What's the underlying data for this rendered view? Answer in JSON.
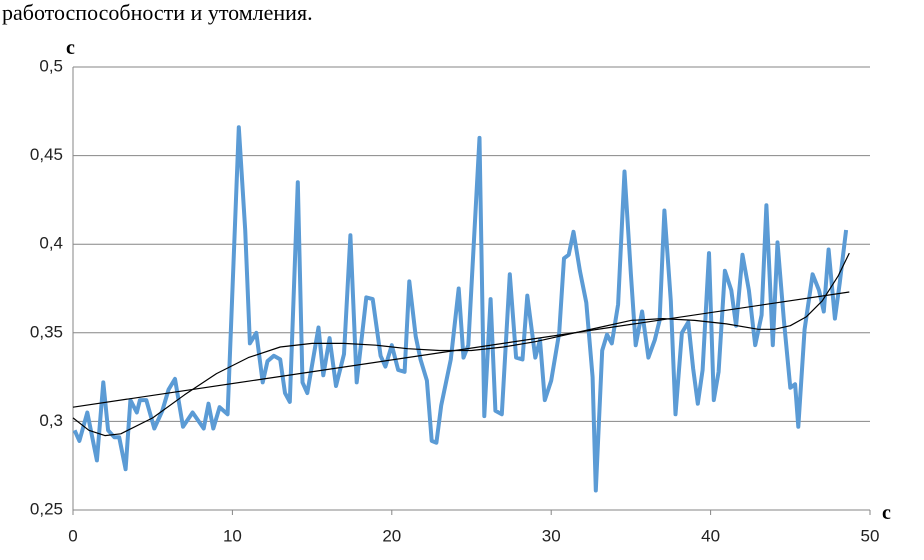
{
  "header_text": "работоспособности и утомления.",
  "chart_data": {
    "type": "line",
    "y_label": "с",
    "x_label": "с",
    "xlim": [
      0,
      50
    ],
    "xticks": [
      0,
      10,
      20,
      30,
      40,
      50
    ],
    "ylim": [
      0.25,
      0.5
    ],
    "yticks": [
      {
        "value": 0.25,
        "label": "0,25"
      },
      {
        "value": 0.3,
        "label": "0,3"
      },
      {
        "value": 0.35,
        "label": "0,35"
      },
      {
        "value": 0.4,
        "label": "0,4"
      },
      {
        "value": 0.45,
        "label": "0,45"
      },
      {
        "value": 0.5,
        "label": "0,5"
      }
    ],
    "grid": true,
    "series": [
      {
        "color": "#5b9bd5",
        "width": 4,
        "x": [
          0.1,
          0.4,
          0.9,
          1.5,
          1.9,
          2.2,
          2.6,
          2.9,
          3.3,
          3.6,
          4.0,
          4.2,
          4.6,
          5.1,
          5.6,
          6.0,
          6.4,
          6.9,
          7.5,
          8.2,
          8.5,
          8.8,
          9.2,
          9.7,
          10.4,
          10.8,
          11.1,
          11.5,
          11.9,
          12.2,
          12.6,
          13.0,
          13.3,
          13.6,
          14.1,
          14.4,
          14.7,
          15.4,
          15.7,
          16.1,
          16.5,
          17.0,
          17.4,
          17.8,
          18.4,
          18.8,
          19.3,
          19.6,
          20.0,
          20.4,
          20.8,
          21.1,
          21.5,
          21.8,
          22.2,
          22.5,
          22.8,
          23.1,
          23.7,
          24.2,
          24.5,
          24.8,
          25.5,
          25.8,
          26.2,
          26.5,
          26.9,
          27.4,
          27.8,
          28.2,
          28.5,
          29.0,
          29.3,
          29.6,
          30.0,
          30.5,
          30.8,
          31.1,
          31.4,
          31.8,
          32.2,
          32.6,
          32.8,
          33.2,
          33.5,
          33.8,
          34.2,
          34.6,
          35.0,
          35.3,
          35.7,
          36.1,
          36.5,
          36.8,
          37.1,
          37.5,
          37.8,
          38.2,
          38.6,
          38.9,
          39.2,
          39.5,
          39.9,
          40.2,
          40.5,
          40.9,
          41.3,
          41.6,
          42.0,
          42.4,
          42.8,
          43.2,
          43.5,
          43.9,
          44.2,
          44.6,
          45.0,
          45.3,
          45.5,
          45.9,
          46.4,
          46.8,
          47.1,
          47.4,
          47.8,
          48.1,
          48.5
        ],
        "values": [
          0.295,
          0.289,
          0.305,
          0.278,
          0.322,
          0.295,
          0.291,
          0.291,
          0.273,
          0.312,
          0.305,
          0.312,
          0.312,
          0.296,
          0.306,
          0.318,
          0.324,
          0.297,
          0.305,
          0.296,
          0.31,
          0.296,
          0.308,
          0.304,
          0.466,
          0.408,
          0.344,
          0.35,
          0.322,
          0.334,
          0.337,
          0.335,
          0.316,
          0.311,
          0.435,
          0.322,
          0.316,
          0.353,
          0.326,
          0.347,
          0.32,
          0.338,
          0.405,
          0.322,
          0.37,
          0.369,
          0.337,
          0.331,
          0.343,
          0.329,
          0.328,
          0.379,
          0.348,
          0.335,
          0.323,
          0.289,
          0.288,
          0.309,
          0.335,
          0.375,
          0.336,
          0.343,
          0.46,
          0.303,
          0.369,
          0.306,
          0.304,
          0.383,
          0.336,
          0.335,
          0.371,
          0.336,
          0.346,
          0.312,
          0.323,
          0.35,
          0.392,
          0.394,
          0.407,
          0.385,
          0.367,
          0.325,
          0.261,
          0.34,
          0.349,
          0.344,
          0.366,
          0.441,
          0.383,
          0.343,
          0.362,
          0.336,
          0.346,
          0.357,
          0.419,
          0.368,
          0.304,
          0.35,
          0.356,
          0.33,
          0.31,
          0.329,
          0.395,
          0.312,
          0.328,
          0.385,
          0.374,
          0.354,
          0.394,
          0.374,
          0.343,
          0.36,
          0.422,
          0.343,
          0.401,
          0.357,
          0.319,
          0.321,
          0.297,
          0.352,
          0.383,
          0.374,
          0.362,
          0.397,
          0.358,
          0.378,
          0.408
        ]
      },
      {
        "color": "#000000",
        "width": 1.2,
        "x": [
          0,
          48.7
        ],
        "values": [
          0.308,
          0.373
        ]
      },
      {
        "color": "#000000",
        "width": 1.2,
        "x": [
          0,
          1,
          2,
          3,
          5,
          7,
          9,
          11,
          13,
          15,
          17,
          19,
          21,
          23,
          25,
          27,
          29,
          31,
          33,
          35,
          37,
          39,
          41,
          43,
          44,
          45,
          46,
          47,
          48,
          48.7
        ],
        "values": [
          0.302,
          0.295,
          0.292,
          0.293,
          0.302,
          0.315,
          0.327,
          0.336,
          0.342,
          0.344,
          0.344,
          0.343,
          0.341,
          0.34,
          0.34,
          0.342,
          0.345,
          0.349,
          0.353,
          0.357,
          0.358,
          0.357,
          0.355,
          0.352,
          0.352,
          0.354,
          0.359,
          0.368,
          0.382,
          0.395
        ]
      }
    ]
  }
}
